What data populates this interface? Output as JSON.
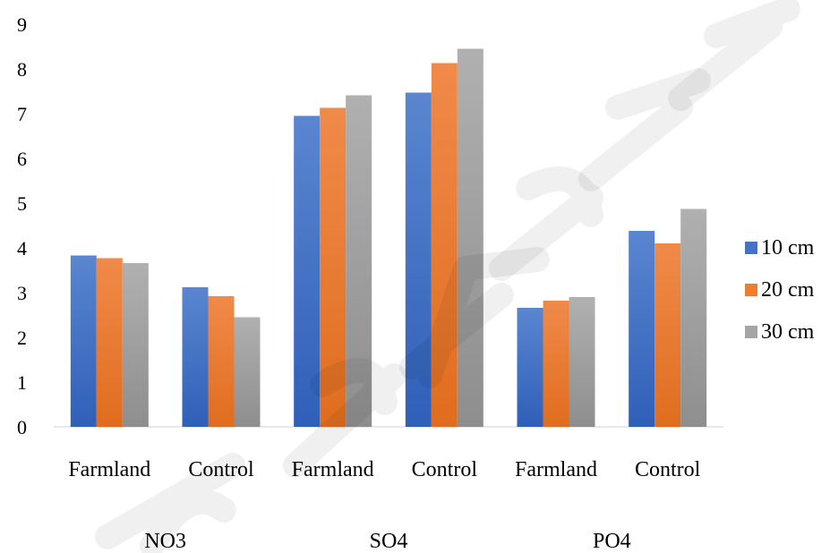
{
  "chart_data": {
    "type": "bar",
    "groups": [
      {
        "name": "NO3",
        "categories": [
          "Farmland",
          "Control"
        ]
      },
      {
        "name": "SO4",
        "categories": [
          "Farmland",
          "Control"
        ]
      },
      {
        "name": "PO4",
        "categories": [
          "Farmland",
          "Control"
        ]
      }
    ],
    "categories": [
      "Farmland",
      "Control",
      "Farmland",
      "Control",
      "Farmland",
      "Control"
    ],
    "series": [
      {
        "name": "10 cm",
        "color": "#4472C4",
        "values": [
          3.83,
          3.12,
          6.95,
          7.47,
          2.66,
          4.38
        ]
      },
      {
        "name": "20 cm",
        "color": "#ED7D31",
        "values": [
          3.77,
          2.92,
          7.13,
          8.13,
          2.82,
          4.1
        ]
      },
      {
        "name": "30 cm",
        "color": "#A5A5A5",
        "values": [
          3.66,
          2.45,
          7.41,
          8.45,
          2.9,
          4.87
        ]
      }
    ],
    "ylim": [
      0,
      9
    ],
    "yticks": [
      "0",
      "1",
      "2",
      "3",
      "4",
      "5",
      "6",
      "7",
      "8",
      "9"
    ],
    "title": "",
    "xlabel": "",
    "ylabel": "",
    "grid": false,
    "legend": "right"
  }
}
